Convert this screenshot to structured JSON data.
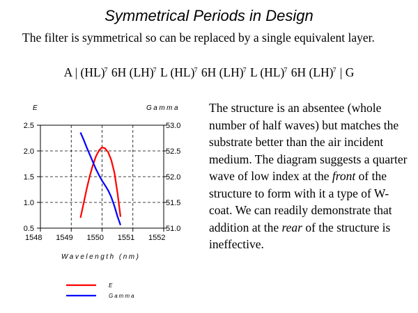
{
  "slide": {
    "title": "Symmetrical Periods in Design",
    "intro": "The filter is symmetrical so can be replaced by a single equivalent layer.",
    "formula": [
      {
        "text": "A | (HL)",
        "sup": "7"
      },
      {
        "text": " 6H (LH)",
        "sup": "7"
      },
      {
        "text": " L (HL)",
        "sup": "7"
      },
      {
        "text": " 6H (LH)",
        "sup": "7"
      },
      {
        "text": " L (HL)",
        "sup": "7"
      },
      {
        "text": " 6H  (LH)",
        "sup": "7"
      },
      {
        "text": " | G",
        "sup": ""
      }
    ],
    "description": {
      "p1": "The structure is an absentee (whole number of half waves) but matches the substrate better than the air incident medium. The diagram suggests a quarter wave of low index at the ",
      "em1": "front",
      "p2": " of the structure to form with it a type of W-coat. We can readily demonstrate that addition at the ",
      "em2": "rear",
      "p3": " of the structure is ineffective."
    }
  },
  "chart_data": {
    "type": "line",
    "xlabel": "Wavelength (nm)",
    "xlim": [
      1548,
      1552
    ],
    "xticks": [
      "1548",
      "1549",
      "1550",
      "1551",
      "1552"
    ],
    "y_left": {
      "label": "E",
      "lim": [
        0.5,
        2.5
      ],
      "ticks": [
        "2.5",
        "2.0",
        "1.5",
        "1.0",
        "0.5"
      ]
    },
    "y_right": {
      "label": "Gamma",
      "lim": [
        51.0,
        53.0
      ],
      "ticks": [
        "53.0",
        "52.5",
        "52.0",
        "51.5",
        "51.0"
      ]
    },
    "grid": true,
    "legend_position": "bottom",
    "series": [
      {
        "name": "E",
        "axis": "left",
        "color": "#ff0000",
        "x": [
          1549.3,
          1549.4,
          1549.5,
          1549.6,
          1549.7,
          1549.8,
          1549.9,
          1550.0,
          1550.1,
          1550.2,
          1550.3,
          1550.4,
          1550.5,
          1550.6
        ],
        "y": [
          0.7,
          0.98,
          1.26,
          1.51,
          1.72,
          1.89,
          2.01,
          2.07,
          2.05,
          1.97,
          1.82,
          1.58,
          1.19,
          0.72
        ]
      },
      {
        "name": "Gamma",
        "axis": "right",
        "color": "#0000ff",
        "x": [
          1549.3,
          1549.4,
          1549.5,
          1549.6,
          1549.7,
          1549.8,
          1549.9,
          1550.0,
          1550.1,
          1550.2,
          1550.3,
          1550.4,
          1550.5,
          1550.6
        ],
        "y": [
          52.86,
          52.72,
          52.57,
          52.43,
          52.29,
          52.15,
          52.03,
          51.92,
          51.83,
          51.73,
          51.6,
          51.43,
          51.23,
          51.06
        ]
      }
    ]
  }
}
